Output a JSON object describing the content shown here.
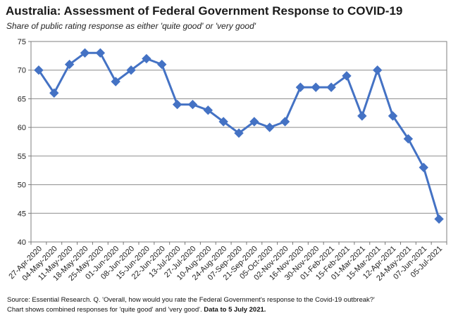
{
  "title": "Australia: Assessment of Federal Government Response to COVID-19",
  "subtitle": "Share of public rating response as either 'quite good' or 'very good'",
  "footnote": {
    "line1": "Source: Essential Research.  Q. 'Overall, how would you rate the Federal Government's response to the Covid-19 outbreak?'",
    "line2_prefix": "Chart shows combined responses for 'quite good' and 'very good'.  ",
    "line2_bold": "Data to 5 July 2021."
  },
  "chart_data": {
    "type": "line",
    "title": "Australia: Assessment of Federal Government Response to COVID-19",
    "subtitle": "Share of public rating response as either 'quite good' or 'very good'",
    "xlabel": "",
    "ylabel": "",
    "ylim": [
      40,
      75
    ],
    "yticks": [
      40,
      45,
      50,
      55,
      60,
      65,
      70,
      75
    ],
    "grid": true,
    "legend": "none",
    "line_color": "#4472c4",
    "categories": [
      "27-Apr-2020",
      "04-May-2020",
      "11-May-2020",
      "18-May-2020",
      "25-May-2020",
      "01-Jun-2020",
      "08-Jun-2020",
      "15-Jun-2020",
      "22-Jun-2020",
      "13-Jul-2020",
      "27-Jul-2020",
      "10-Aug-2020",
      "24-Aug-2020",
      "07-Sep-2020",
      "21-Sep-2020",
      "05-Oct-2020",
      "02-Nov-2020",
      "16-Nov-2020",
      "30-Nov-2020",
      "01-Feb-2021",
      "15-Feb-2021",
      "01-Mar-2021",
      "15-Mar-2021",
      "12-Apr-2021",
      "24-May-2021",
      "07-Jun-2021",
      "05-Jul-2021"
    ],
    "values": [
      70,
      66,
      71,
      73,
      73,
      68,
      70,
      72,
      71,
      64,
      64,
      63,
      61,
      59,
      61,
      60,
      61,
      67,
      67,
      67,
      69,
      62,
      70,
      62,
      58,
      53,
      44
    ]
  }
}
